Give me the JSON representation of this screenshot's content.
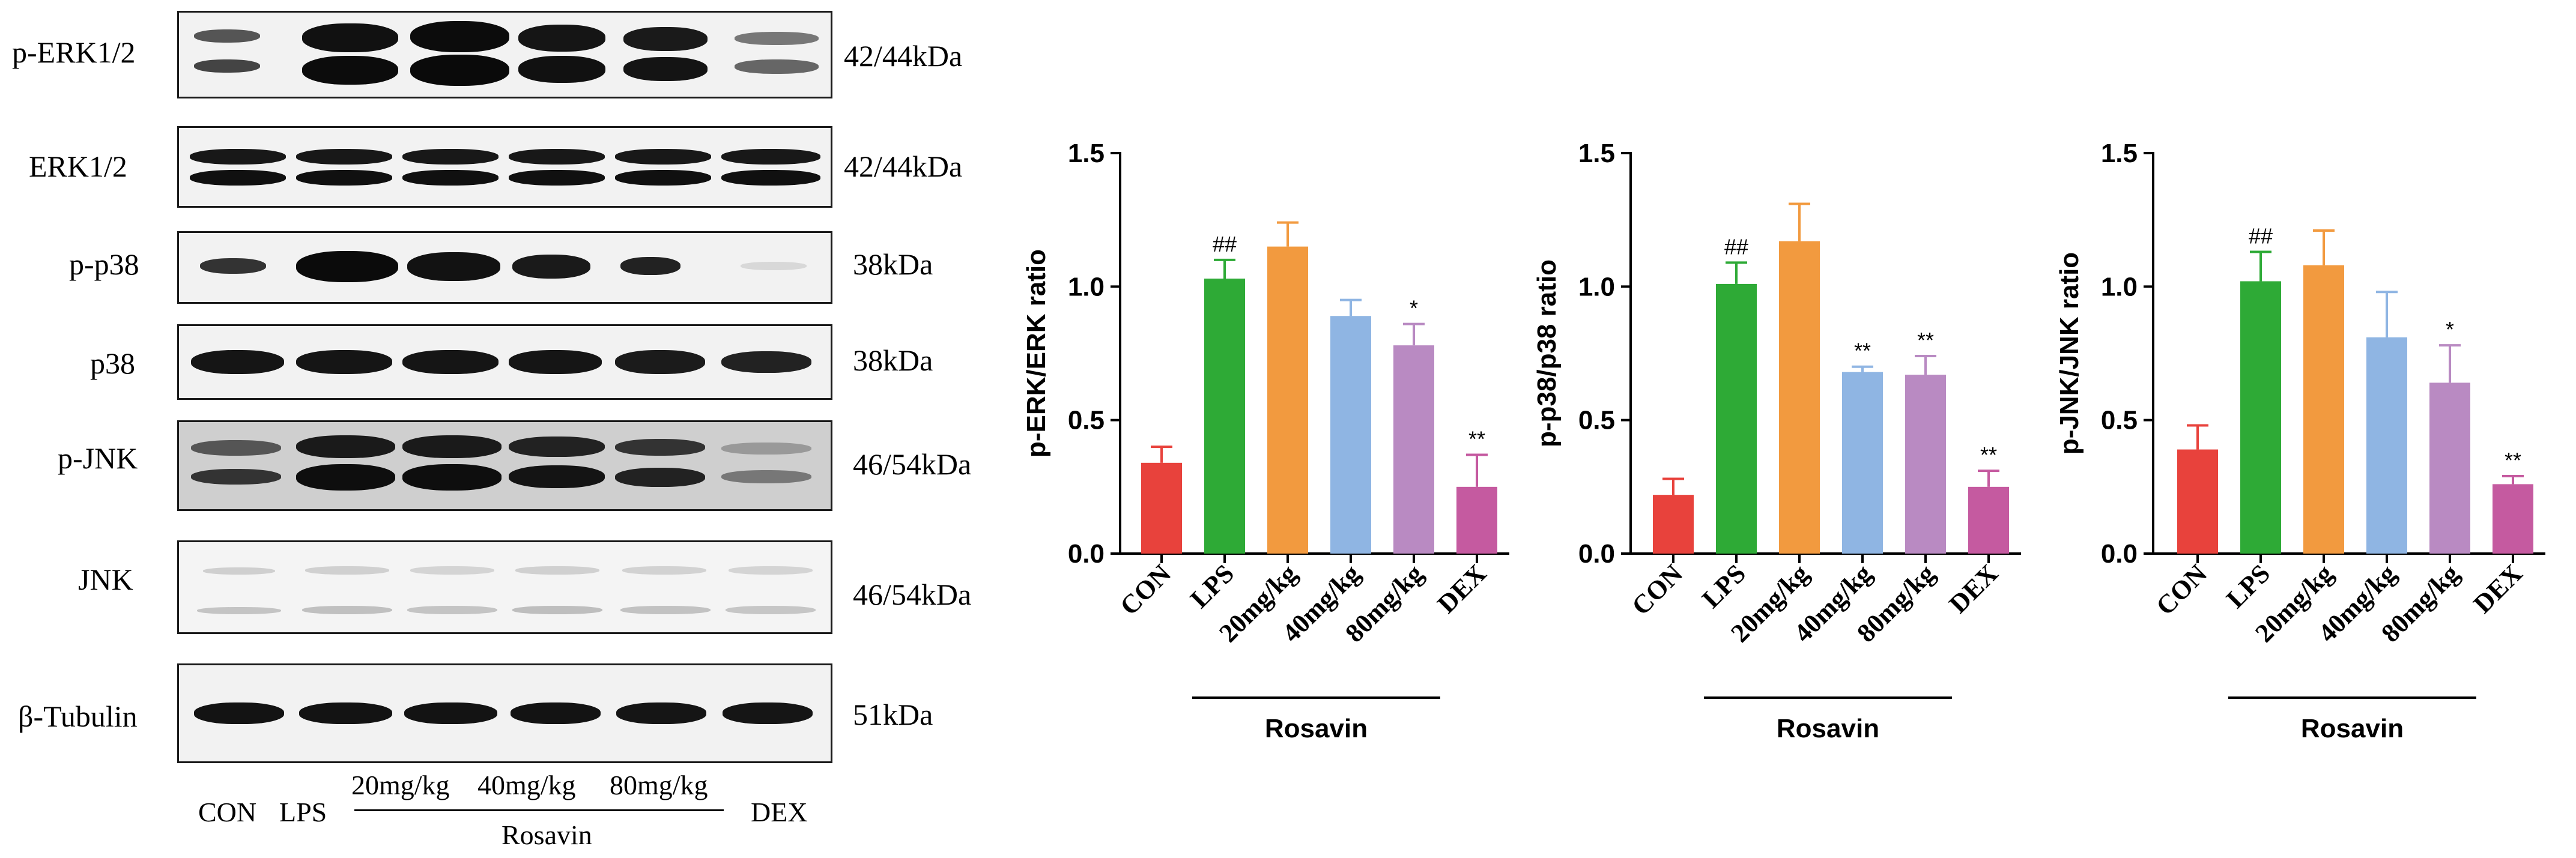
{
  "blots": {
    "rows": [
      {
        "protein": "p-ERK1/2",
        "size": "42/44kDa"
      },
      {
        "protein": "ERK1/2",
        "size": "42/44kDa"
      },
      {
        "protein": "p-p38",
        "size": "38kDa"
      },
      {
        "protein": "p38",
        "size": "38kDa"
      },
      {
        "protein": "p-JNK",
        "size": "46/54kDa"
      },
      {
        "protein": "JNK",
        "size": "46/54kDa"
      },
      {
        "protein": "β-Tubulin",
        "size": "51kDa"
      }
    ],
    "lanes": [
      "CON",
      "LPS",
      "20mg/kg",
      "40mg/kg",
      "80mg/kg",
      "DEX"
    ],
    "group_label": "Rosavin"
  },
  "chart_data": [
    {
      "type": "bar",
      "ylabel": "p-ERK/ERK ratio",
      "categories": [
        "CON",
        "LPS",
        "20mg/kg",
        "40mg/kg",
        "80mg/kg",
        "DEX"
      ],
      "values": [
        0.34,
        1.03,
        1.15,
        0.89,
        0.78,
        0.25
      ],
      "errors": [
        0.06,
        0.07,
        0.09,
        0.06,
        0.08,
        0.12
      ],
      "significance": [
        "",
        "##",
        "",
        "",
        "*",
        "**"
      ],
      "ylim": [
        0,
        1.5
      ],
      "yticks": [
        "0.0",
        "0.5",
        "1.0",
        "1.5"
      ],
      "group_label": "Rosavin",
      "colors": [
        "#e8423c",
        "#2eaa36",
        "#f29a3f",
        "#8fb5e3",
        "#b98ac2",
        "#c55aa0"
      ]
    },
    {
      "type": "bar",
      "ylabel": "p-p38/p38 ratio",
      "categories": [
        "CON",
        "LPS",
        "20mg/kg",
        "40mg/kg",
        "80mg/kg",
        "DEX"
      ],
      "values": [
        0.22,
        1.01,
        1.17,
        0.68,
        0.67,
        0.25
      ],
      "errors": [
        0.06,
        0.08,
        0.14,
        0.02,
        0.07,
        0.06
      ],
      "significance": [
        "",
        "##",
        "",
        "**",
        "**",
        "**"
      ],
      "ylim": [
        0,
        1.5
      ],
      "yticks": [
        "0.0",
        "0.5",
        "1.0",
        "1.5"
      ],
      "group_label": "Rosavin",
      "colors": [
        "#e8423c",
        "#2eaa36",
        "#f29a3f",
        "#8fb5e3",
        "#b98ac2",
        "#c55aa0"
      ]
    },
    {
      "type": "bar",
      "ylabel": "p-JNK/JNK ratio",
      "categories": [
        "CON",
        "LPS",
        "20mg/kg",
        "40mg/kg",
        "80mg/kg",
        "DEX"
      ],
      "values": [
        0.39,
        1.02,
        1.08,
        0.81,
        0.64,
        0.26
      ],
      "errors": [
        0.09,
        0.11,
        0.13,
        0.17,
        0.14,
        0.03
      ],
      "significance": [
        "",
        "##",
        "",
        "",
        "*",
        "**"
      ],
      "ylim": [
        0,
        1.5
      ],
      "yticks": [
        "0.0",
        "0.5",
        "1.0",
        "1.5"
      ],
      "group_label": "Rosavin",
      "colors": [
        "#e8423c",
        "#2eaa36",
        "#f29a3f",
        "#8fb5e3",
        "#b98ac2",
        "#c55aa0"
      ]
    }
  ]
}
